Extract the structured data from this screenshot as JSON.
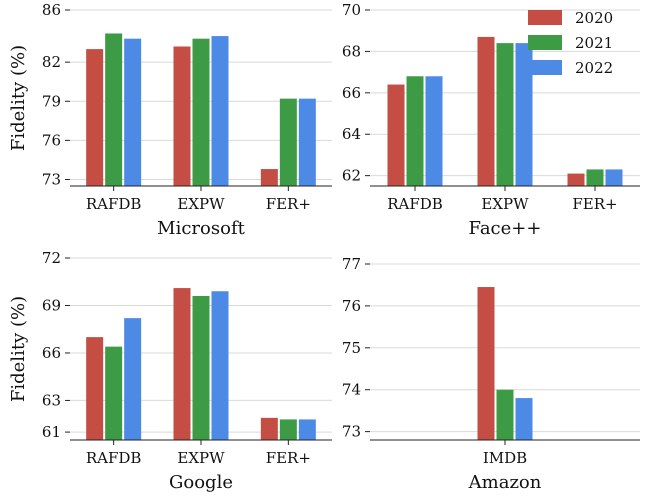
{
  "legend": [
    {
      "label": "2020",
      "color": "#c44e44"
    },
    {
      "label": "2021",
      "color": "#3e9b45"
    },
    {
      "label": "2022",
      "color": "#4c8ae6"
    }
  ],
  "chart_data": [
    {
      "type": "bar",
      "xlabel": "Microsoft",
      "ylabel": "Fidelity (%)",
      "categories": [
        "RAFDB",
        "EXPW",
        "FER+"
      ],
      "ylim": [
        72.5,
        86
      ],
      "yticks": [
        "73",
        "76",
        "79",
        "82",
        "86"
      ],
      "series": [
        {
          "name": "2020",
          "values": [
            83.0,
            83.2,
            73.8
          ]
        },
        {
          "name": "2021",
          "values": [
            84.2,
            83.8,
            79.2
          ]
        },
        {
          "name": "2022",
          "values": [
            83.8,
            84.0,
            79.2
          ]
        }
      ]
    },
    {
      "type": "bar",
      "xlabel": "Face++",
      "ylabel": "",
      "categories": [
        "RAFDB",
        "EXPW",
        "FER+"
      ],
      "ylim": [
        61.5,
        70
      ],
      "yticks": [
        "62",
        "64",
        "66",
        "68",
        "70"
      ],
      "series": [
        {
          "name": "2020",
          "values": [
            66.4,
            68.7,
            62.1
          ]
        },
        {
          "name": "2021",
          "values": [
            66.8,
            68.4,
            62.3
          ]
        },
        {
          "name": "2022",
          "values": [
            66.8,
            68.4,
            62.3
          ]
        }
      ]
    },
    {
      "type": "bar",
      "xlabel": "Google",
      "ylabel": "Fidelity (%)",
      "categories": [
        "RAFDB",
        "EXPW",
        "FER+"
      ],
      "ylim": [
        60.5,
        72
      ],
      "yticks": [
        "61",
        "63",
        "66",
        "69",
        "72"
      ],
      "series": [
        {
          "name": "2020",
          "values": [
            67.0,
            70.1,
            61.9
          ]
        },
        {
          "name": "2021",
          "values": [
            66.4,
            69.6,
            61.8
          ]
        },
        {
          "name": "2022",
          "values": [
            68.2,
            69.9,
            61.8
          ]
        }
      ]
    },
    {
      "type": "bar",
      "xlabel": "Amazon",
      "ylabel": "",
      "categories": [
        "IMDB"
      ],
      "ylim": [
        72.8,
        77
      ],
      "yticks": [
        "73",
        "74",
        "75",
        "76",
        "77"
      ],
      "series": [
        {
          "name": "2020",
          "values": [
            76.45
          ]
        },
        {
          "name": "2021",
          "values": [
            74.0
          ]
        },
        {
          "name": "2022",
          "values": [
            73.8
          ]
        }
      ]
    }
  ]
}
